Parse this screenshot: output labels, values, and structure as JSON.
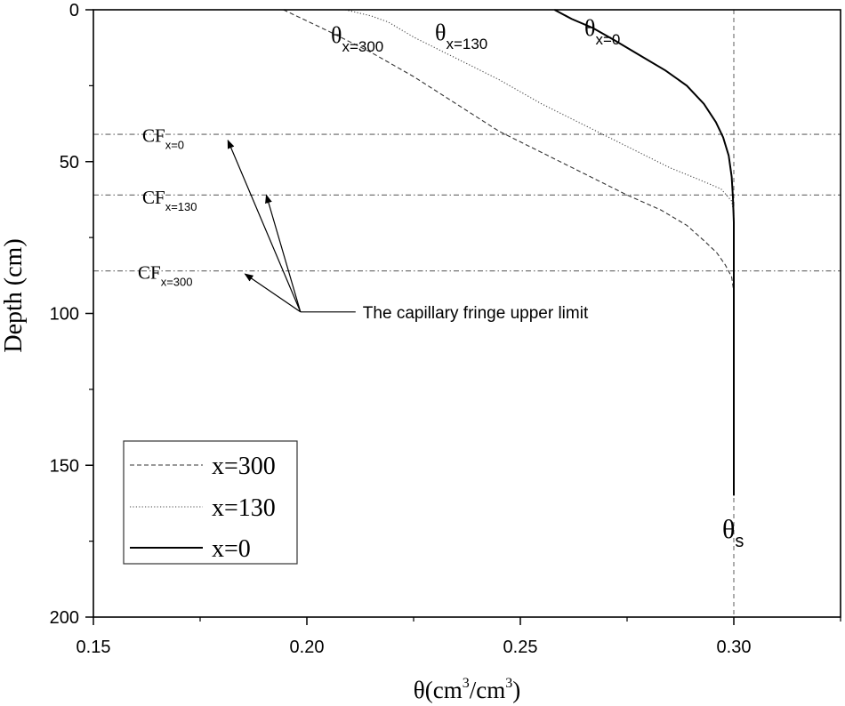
{
  "chart_data": {
    "type": "line",
    "title": "",
    "xlabel": "θ(cm³/cm³)",
    "xlabel_parts": {
      "base": "θ(cm",
      "sup1": "3",
      "mid": "/cm",
      "sup2": "3",
      "end": ")"
    },
    "ylabel": "Depth (cm)",
    "xlim": [
      0.15,
      0.325
    ],
    "ylim": [
      0,
      200
    ],
    "y_inverted": true,
    "x_ticks": [
      0.15,
      0.2,
      0.25,
      0.3
    ],
    "x_tick_labels": [
      "0.15",
      "0.20",
      "0.25",
      "0.30"
    ],
    "y_ticks": [
      0,
      50,
      100,
      150,
      200
    ],
    "y_tick_labels": [
      "0",
      "50",
      "100",
      "150",
      "200"
    ],
    "grid": false,
    "legend": "bottom-left",
    "series": [
      {
        "name": "x=300",
        "style": "dashed",
        "points": [
          [
            0.1945,
            0
          ],
          [
            0.205,
            7
          ],
          [
            0.215,
            14
          ],
          [
            0.225,
            22
          ],
          [
            0.235,
            31
          ],
          [
            0.245,
            40
          ],
          [
            0.255,
            47
          ],
          [
            0.265,
            54
          ],
          [
            0.275,
            61
          ],
          [
            0.283,
            66
          ],
          [
            0.289,
            71
          ],
          [
            0.293,
            76
          ],
          [
            0.296,
            80
          ],
          [
            0.298,
            84
          ],
          [
            0.2995,
            88
          ],
          [
            0.3,
            93
          ]
        ]
      },
      {
        "name": "x=130",
        "style": "dotted",
        "points": [
          [
            0.209,
            0
          ],
          [
            0.215,
            2
          ],
          [
            0.219,
            4
          ],
          [
            0.225,
            9
          ],
          [
            0.235,
            16
          ],
          [
            0.245,
            23
          ],
          [
            0.255,
            31
          ],
          [
            0.265,
            38
          ],
          [
            0.275,
            45
          ],
          [
            0.285,
            52
          ],
          [
            0.292,
            56
          ],
          [
            0.297,
            59
          ],
          [
            0.2995,
            63
          ],
          [
            0.3,
            67
          ],
          [
            0.3,
            90
          ]
        ]
      },
      {
        "name": "x=0",
        "style": "solid",
        "points": [
          [
            0.258,
            0
          ],
          [
            0.262,
            3
          ],
          [
            0.267,
            6
          ],
          [
            0.272,
            10
          ],
          [
            0.278,
            15
          ],
          [
            0.284,
            20
          ],
          [
            0.289,
            25
          ],
          [
            0.293,
            31
          ],
          [
            0.2958,
            37
          ],
          [
            0.2975,
            42
          ],
          [
            0.2988,
            48
          ],
          [
            0.2995,
            55
          ],
          [
            0.2998,
            62
          ],
          [
            0.3,
            70
          ],
          [
            0.3,
            160
          ]
        ]
      }
    ],
    "saturation_line": {
      "x": 0.3,
      "style": "dashed"
    },
    "capillary_lines": [
      {
        "label_base": "CF",
        "label_sub": "x=0",
        "depth": 41
      },
      {
        "label_base": "CF",
        "label_sub": "x=130",
        "depth": 61
      },
      {
        "label_base": "CF",
        "label_sub": "x=300",
        "depth": 86
      }
    ],
    "curve_labels": [
      {
        "base": "θ",
        "sub": "x=300"
      },
      {
        "base": "θ",
        "sub": "x=130"
      },
      {
        "base": "θ",
        "sub": "x=0"
      }
    ],
    "theta_s_label": {
      "base": "θ",
      "sub": "s"
    },
    "annotation": {
      "text": "The capillary fringe upper limit",
      "origin": [
        0.1985,
        99.5
      ],
      "arrow_targets": [
        [
          0.1815,
          43
        ],
        [
          0.1905,
          61
        ],
        [
          0.1855,
          87
        ]
      ]
    }
  }
}
